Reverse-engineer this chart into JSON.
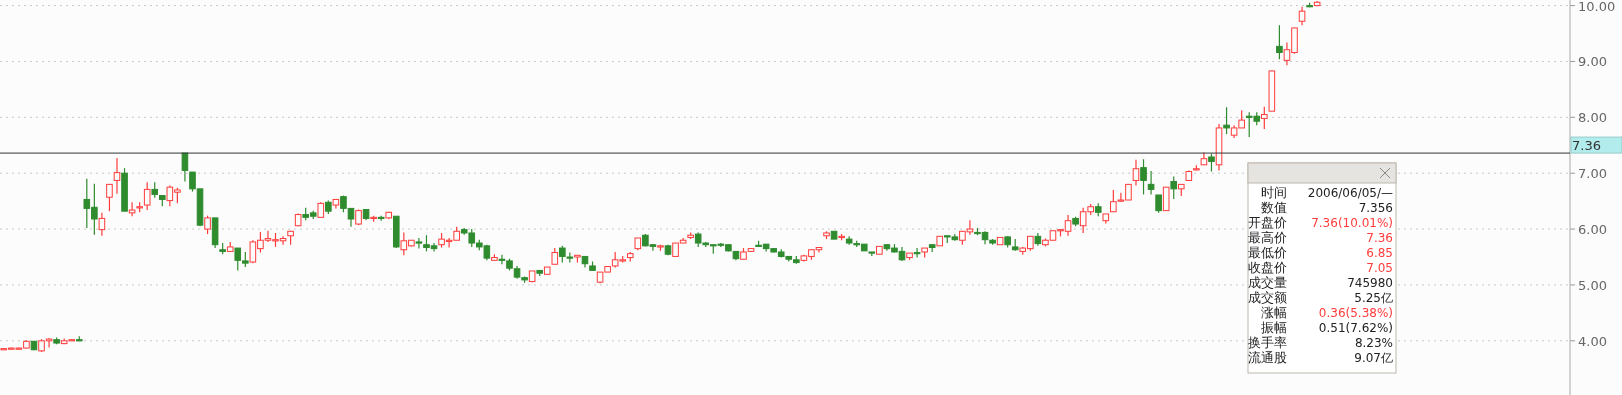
{
  "chart_data": {
    "type": "candlestick",
    "ylim": [
      3.03,
      10.1
    ],
    "yticks": [
      {
        "value": 4,
        "label": "4.00"
      },
      {
        "value": 5,
        "label": "5.00"
      },
      {
        "value": 6,
        "label": "6.00"
      },
      {
        "value": 7,
        "label": "7.00"
      },
      {
        "value": 8,
        "label": "8.00"
      },
      {
        "value": 9,
        "label": "9.00"
      },
      {
        "value": 10,
        "label": "10.00"
      }
    ],
    "grid": "y",
    "ref_lines": [
      {
        "axis": "y",
        "value": 7.36,
        "label": "7.36"
      }
    ],
    "annotations": [
      "时间",
      "2006/06/05/—",
      "数值",
      "7.356",
      "开盘价",
      "7.36(10.01%)",
      "最高价",
      "7.36",
      "最低价",
      "6.85",
      "收盘价",
      "7.05",
      "成交量",
      "745980",
      "成交额",
      "5.25亿",
      "涨幅",
      "0.36(5.38%)",
      "振幅",
      "0.51(7.62%)",
      "换手率",
      "8.23%",
      "流通股",
      "9.07亿"
    ],
    "ohlc": [
      [
        3.85,
        3.87,
        3.84,
        3.86
      ],
      [
        3.86,
        3.88,
        3.85,
        3.87
      ],
      [
        3.86,
        3.88,
        3.85,
        3.87
      ],
      [
        3.87,
        4.01,
        3.86,
        3.99
      ],
      [
        3.99,
        4.0,
        3.83,
        3.84
      ],
      [
        3.82,
        4.03,
        3.8,
        4.0
      ],
      [
        4.0,
        4.05,
        3.88,
        4.03
      ],
      [
        4.02,
        4.06,
        3.94,
        3.96
      ],
      [
        3.95,
        4.04,
        3.94,
        4.0
      ],
      [
        4.01,
        4.03,
        4.0,
        4.02
      ],
      [
        4.02,
        4.08,
        4.0,
        4.0
      ],
      [
        6.53,
        6.9,
        6.02,
        6.37
      ],
      [
        6.39,
        6.81,
        5.9,
        6.18
      ],
      [
        5.99,
        6.29,
        5.88,
        6.19
      ],
      [
        6.57,
        6.8,
        6.32,
        6.8
      ],
      [
        6.87,
        7.27,
        6.63,
        7.01
      ],
      [
        7.0,
        7.09,
        6.32,
        6.32
      ],
      [
        6.29,
        6.48,
        6.23,
        6.34
      ],
      [
        6.39,
        6.48,
        6.3,
        6.4
      ],
      [
        6.43,
        6.84,
        6.34,
        6.71
      ],
      [
        6.71,
        6.84,
        6.56,
        6.62
      ],
      [
        6.6,
        6.6,
        6.41,
        6.53
      ],
      [
        6.51,
        6.78,
        6.41,
        6.75
      ],
      [
        6.66,
        6.74,
        6.46,
        6.7
      ],
      [
        7.36,
        7.36,
        6.85,
        7.05
      ],
      [
        7.02,
        7.02,
        6.67,
        6.72
      ],
      [
        6.72,
        6.72,
        6.05,
        6.07
      ],
      [
        6.0,
        6.24,
        5.91,
        6.2
      ],
      [
        6.2,
        6.2,
        5.66,
        5.72
      ],
      [
        5.63,
        5.75,
        5.55,
        5.6
      ],
      [
        5.6,
        5.77,
        5.6,
        5.68
      ],
      [
        5.66,
        5.66,
        5.26,
        5.44
      ],
      [
        5.43,
        5.59,
        5.32,
        5.39
      ],
      [
        5.41,
        5.8,
        5.39,
        5.77
      ],
      [
        5.65,
        5.95,
        5.58,
        5.8
      ],
      [
        5.8,
        5.97,
        5.77,
        5.83
      ],
      [
        5.8,
        5.93,
        5.68,
        5.81
      ],
      [
        5.79,
        5.87,
        5.72,
        5.83
      ],
      [
        5.88,
        5.97,
        5.72,
        5.96
      ],
      [
        6.06,
        6.28,
        6.05,
        6.26
      ],
      [
        6.26,
        6.38,
        6.16,
        6.21
      ],
      [
        6.29,
        6.33,
        6.18,
        6.23
      ],
      [
        6.21,
        6.48,
        6.21,
        6.46
      ],
      [
        6.48,
        6.51,
        6.27,
        6.32
      ],
      [
        6.43,
        6.53,
        6.37,
        6.53
      ],
      [
        6.58,
        6.6,
        6.3,
        6.37
      ],
      [
        6.37,
        6.37,
        6.04,
        6.18
      ],
      [
        6.09,
        6.35,
        6.07,
        6.33
      ],
      [
        6.35,
        6.35,
        6.16,
        6.19
      ],
      [
        6.2,
        6.24,
        6.13,
        6.21
      ],
      [
        6.21,
        6.24,
        6.15,
        6.2
      ],
      [
        6.2,
        6.31,
        6.18,
        6.3
      ],
      [
        6.23,
        6.23,
        5.66,
        5.68
      ],
      [
        5.63,
        5.94,
        5.53,
        5.79
      ],
      [
        5.7,
        5.8,
        5.69,
        5.8
      ],
      [
        5.77,
        5.84,
        5.65,
        5.75
      ],
      [
        5.72,
        5.89,
        5.6,
        5.67
      ],
      [
        5.7,
        5.75,
        5.6,
        5.65
      ],
      [
        5.72,
        5.93,
        5.67,
        5.82
      ],
      [
        5.79,
        5.84,
        5.67,
        5.8
      ],
      [
        5.8,
        6.04,
        5.8,
        5.96
      ],
      [
        5.99,
        6.02,
        5.9,
        5.93
      ],
      [
        5.93,
        6.0,
        5.68,
        5.75
      ],
      [
        5.75,
        5.81,
        5.62,
        5.68
      ],
      [
        5.7,
        5.72,
        5.44,
        5.48
      ],
      [
        5.44,
        5.55,
        5.44,
        5.49
      ],
      [
        5.46,
        5.54,
        5.37,
        5.45
      ],
      [
        5.43,
        5.47,
        5.26,
        5.3
      ],
      [
        5.29,
        5.34,
        5.11,
        5.14
      ],
      [
        5.13,
        5.15,
        5.04,
        5.09
      ],
      [
        5.06,
        5.25,
        5.05,
        5.25
      ],
      [
        5.26,
        5.26,
        5.16,
        5.21
      ],
      [
        5.19,
        5.32,
        5.19,
        5.32
      ],
      [
        5.37,
        5.66,
        5.37,
        5.58
      ],
      [
        5.66,
        5.7,
        5.4,
        5.51
      ],
      [
        5.5,
        5.58,
        5.4,
        5.49
      ],
      [
        5.5,
        5.53,
        5.4,
        5.53
      ],
      [
        5.51,
        5.51,
        5.31,
        5.38
      ],
      [
        5.34,
        5.42,
        5.26,
        5.26
      ],
      [
        5.05,
        5.23,
        5.03,
        5.23
      ],
      [
        5.23,
        5.33,
        5.23,
        5.33
      ],
      [
        5.34,
        5.59,
        5.31,
        5.45
      ],
      [
        5.44,
        5.52,
        5.4,
        5.45
      ],
      [
        5.49,
        5.59,
        5.42,
        5.56
      ],
      [
        5.65,
        5.84,
        5.62,
        5.84
      ],
      [
        5.89,
        5.91,
        5.69,
        5.7
      ],
      [
        5.72,
        5.73,
        5.61,
        5.69
      ],
      [
        5.68,
        5.72,
        5.61,
        5.7
      ],
      [
        5.7,
        5.72,
        5.53,
        5.55
      ],
      [
        5.51,
        5.75,
        5.51,
        5.75
      ],
      [
        5.75,
        5.84,
        5.75,
        5.8
      ],
      [
        5.85,
        5.94,
        5.82,
        5.89
      ],
      [
        5.91,
        5.94,
        5.68,
        5.75
      ],
      [
        5.75,
        5.77,
        5.68,
        5.72
      ],
      [
        5.72,
        5.72,
        5.56,
        5.71
      ],
      [
        5.73,
        5.75,
        5.68,
        5.71
      ],
      [
        5.72,
        5.73,
        5.6,
        5.61
      ],
      [
        5.6,
        5.6,
        5.44,
        5.47
      ],
      [
        5.46,
        5.66,
        5.46,
        5.59
      ],
      [
        5.6,
        5.66,
        5.59,
        5.65
      ],
      [
        5.71,
        5.79,
        5.68,
        5.7
      ],
      [
        5.73,
        5.73,
        5.6,
        5.65
      ],
      [
        5.65,
        5.66,
        5.58,
        5.59
      ],
      [
        5.59,
        5.64,
        5.49,
        5.51
      ],
      [
        5.51,
        5.52,
        5.42,
        5.46
      ],
      [
        5.45,
        5.52,
        5.38,
        5.4
      ],
      [
        5.44,
        5.54,
        5.42,
        5.52
      ],
      [
        5.51,
        5.63,
        5.45,
        5.63
      ],
      [
        5.63,
        5.67,
        5.58,
        5.67
      ],
      [
        5.88,
        5.96,
        5.82,
        5.93
      ],
      [
        5.96,
        5.96,
        5.82,
        5.82
      ],
      [
        5.86,
        5.91,
        5.8,
        5.87
      ],
      [
        5.82,
        5.87,
        5.72,
        5.75
      ],
      [
        5.74,
        5.79,
        5.68,
        5.73
      ],
      [
        5.73,
        5.73,
        5.61,
        5.61
      ],
      [
        5.59,
        5.59,
        5.52,
        5.58
      ],
      [
        5.55,
        5.69,
        5.55,
        5.69
      ],
      [
        5.72,
        5.73,
        5.61,
        5.65
      ],
      [
        5.66,
        5.73,
        5.58,
        5.59
      ],
      [
        5.6,
        5.68,
        5.43,
        5.45
      ],
      [
        5.49,
        5.57,
        5.45,
        5.57
      ],
      [
        5.58,
        5.66,
        5.49,
        5.57
      ],
      [
        5.59,
        5.66,
        5.49,
        5.66
      ],
      [
        5.72,
        5.73,
        5.59,
        5.67
      ],
      [
        5.7,
        5.87,
        5.7,
        5.87
      ],
      [
        5.88,
        5.89,
        5.75,
        5.87
      ],
      [
        5.86,
        5.91,
        5.79,
        5.81
      ],
      [
        5.8,
        5.96,
        5.72,
        5.96
      ],
      [
        5.95,
        6.16,
        5.9,
        6.0
      ],
      [
        5.94,
        6.02,
        5.89,
        5.93
      ],
      [
        5.94,
        5.96,
        5.73,
        5.81
      ],
      [
        5.8,
        5.82,
        5.72,
        5.75
      ],
      [
        5.72,
        5.85,
        5.72,
        5.85
      ],
      [
        5.86,
        5.87,
        5.67,
        5.72
      ],
      [
        5.68,
        5.82,
        5.61,
        5.63
      ],
      [
        5.6,
        5.68,
        5.54,
        5.66
      ],
      [
        5.65,
        5.87,
        5.61,
        5.87
      ],
      [
        5.87,
        5.93,
        5.7,
        5.74
      ],
      [
        5.72,
        5.83,
        5.69,
        5.8
      ],
      [
        5.8,
        5.97,
        5.8,
        5.97
      ],
      [
        5.98,
        6.0,
        5.87,
        5.99
      ],
      [
        5.96,
        6.25,
        5.88,
        6.15
      ],
      [
        6.19,
        6.22,
        6.05,
        6.09
      ],
      [
        6.06,
        6.38,
        5.93,
        6.31
      ],
      [
        6.31,
        6.45,
        6.25,
        6.4
      ],
      [
        6.4,
        6.46,
        6.23,
        6.3
      ],
      [
        6.15,
        6.27,
        6.1,
        6.27
      ],
      [
        6.31,
        6.7,
        6.31,
        6.49
      ],
      [
        6.51,
        6.65,
        6.49,
        6.52
      ],
      [
        6.52,
        6.8,
        6.52,
        6.8
      ],
      [
        6.87,
        7.24,
        6.78,
        7.08
      ],
      [
        7.1,
        7.25,
        6.62,
        6.87
      ],
      [
        6.8,
        7.04,
        6.62,
        6.71
      ],
      [
        6.61,
        6.61,
        6.29,
        6.33
      ],
      [
        6.33,
        6.75,
        6.33,
        6.75
      ],
      [
        6.85,
        6.94,
        6.54,
        6.72
      ],
      [
        6.72,
        6.8,
        6.59,
        6.8
      ],
      [
        6.87,
        7.05,
        6.87,
        7.03
      ],
      [
        7.07,
        7.14,
        7.05,
        7.08
      ],
      [
        7.15,
        7.37,
        7.15,
        7.26
      ],
      [
        7.29,
        7.35,
        7.03,
        7.21
      ],
      [
        7.15,
        7.88,
        7.05,
        7.81
      ],
      [
        7.86,
        8.18,
        7.7,
        7.81
      ],
      [
        7.68,
        7.86,
        7.63,
        7.81
      ],
      [
        7.81,
        8.12,
        7.81,
        7.95
      ],
      [
        8.02,
        8.09,
        7.65,
        8.01
      ],
      [
        8.02,
        8.09,
        7.86,
        7.93
      ],
      [
        7.98,
        8.19,
        7.79,
        8.05
      ],
      [
        8.11,
        8.84,
        8.11,
        8.83
      ],
      [
        9.27,
        9.65,
        9.04,
        9.16
      ],
      [
        9.02,
        9.34,
        8.93,
        9.21
      ],
      [
        9.16,
        9.6,
        9.14,
        9.6
      ],
      [
        9.72,
        9.98,
        9.65,
        9.9
      ],
      [
        10.0,
        10.05,
        9.97,
        9.99
      ],
      [
        10.0,
        10.08,
        9.99,
        10.06
      ],
      null,
      null,
      null,
      null,
      null,
      null,
      null,
      null,
      null,
      null,
      null,
      null,
      null,
      null,
      null,
      null,
      null,
      null,
      null,
      null,
      null,
      null,
      null,
      null,
      null,
      null,
      null,
      null,
      null,
      null,
      null,
      null,
      null
    ],
    "categories": [
      null,
      null,
      null,
      null,
      null,
      null,
      null,
      null,
      null,
      null,
      null,
      null,
      null,
      null,
      null,
      null,
      null,
      null,
      null,
      null,
      null,
      null,
      null,
      null,
      null,
      null,
      null,
      null,
      null,
      null,
      null,
      null,
      null,
      null,
      null,
      null,
      null,
      null,
      null,
      null,
      null,
      null,
      null,
      null,
      null,
      null,
      null,
      null,
      null,
      null,
      null,
      null,
      null,
      null,
      null,
      null,
      null,
      null,
      null,
      null,
      null,
      null,
      null,
      null,
      null,
      null,
      null,
      null,
      null,
      null,
      null,
      null,
      null,
      null,
      null,
      null,
      null,
      null,
      null,
      null,
      null,
      null,
      null,
      null,
      null,
      null,
      null,
      null,
      null,
      null,
      null,
      null,
      null,
      null,
      null,
      null,
      null,
      null,
      null,
      null,
      null,
      null,
      null,
      null,
      null,
      null,
      null,
      null,
      null,
      null,
      null,
      null,
      null,
      null,
      null,
      null,
      null,
      null,
      null,
      null,
      null,
      null,
      null,
      null,
      null,
      null,
      null,
      null,
      null,
      null,
      null,
      null,
      null,
      null,
      null,
      null,
      null,
      null,
      null,
      null,
      null,
      null,
      null,
      null,
      null,
      null,
      null,
      null,
      null,
      null,
      null,
      null,
      null,
      null,
      null,
      null,
      null,
      null,
      null,
      null,
      null,
      null,
      null,
      null,
      null,
      null,
      null,
      null,
      null,
      null,
      null,
      null,
      null,
      null,
      null,
      null,
      null,
      null,
      null,
      null,
      null,
      null,
      null,
      null,
      null,
      null,
      null,
      null,
      null,
      null,
      null,
      null,
      null,
      null,
      null,
      null,
      null,
      null,
      null,
      null,
      null,
      null,
      null,
      null,
      null,
      null,
      null,
      null
    ]
  }
}
